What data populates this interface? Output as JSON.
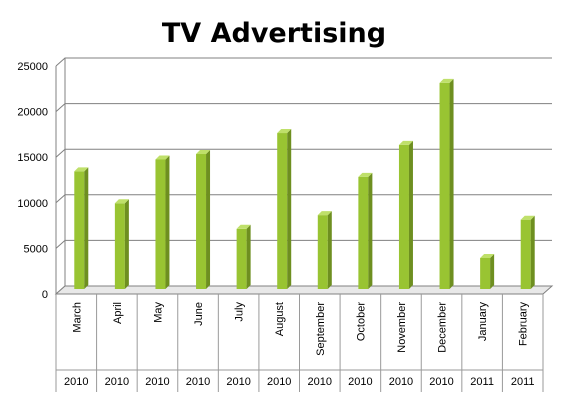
{
  "chart_data": {
    "type": "bar",
    "title": "TV Advertising",
    "xlabel": "",
    "ylabel": "",
    "ylim": [
      0,
      25000
    ],
    "yticks": [
      0,
      5000,
      10000,
      15000,
      20000,
      25000
    ],
    "grid": true,
    "legend": "none",
    "categories": [
      "March",
      "April",
      "May",
      "June",
      "July",
      "August",
      "September",
      "October",
      "November",
      "December",
      "January",
      "February"
    ],
    "years": [
      "2010",
      "2010",
      "2010",
      "2010",
      "2010",
      "2010",
      "2010",
      "2010",
      "2010",
      "2010",
      "2011",
      "2011"
    ],
    "values": [
      12900,
      9400,
      14200,
      14800,
      6600,
      17100,
      8100,
      12300,
      15800,
      22600,
      3400,
      7600
    ],
    "colors": {
      "bar_front": "#99c432",
      "bar_side": "#6e8f20",
      "bar_top": "#bfe06a"
    }
  }
}
